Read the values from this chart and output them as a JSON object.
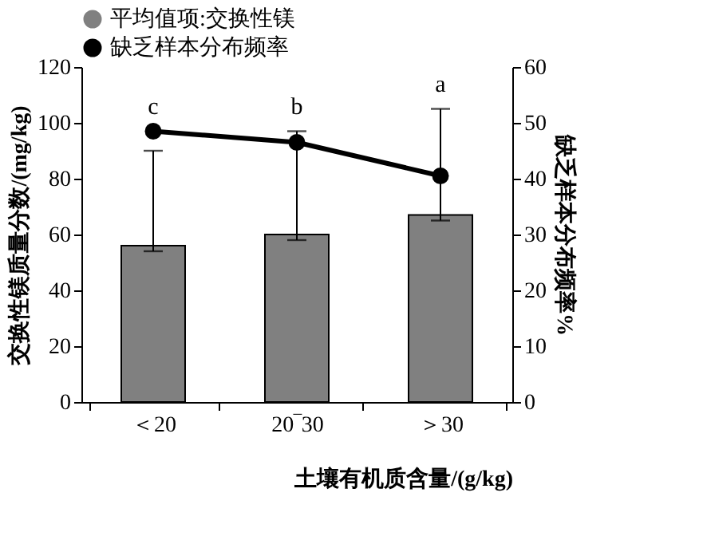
{
  "chart_data": {
    "type": "bar",
    "xlabel": "土壤有机质含量/(g/kg)",
    "ylabel": "交换性镁质量分数/(mg/kg)",
    "y2label": "缺乏样本分布频率%",
    "categories": [
      "＜20",
      "20‾30",
      "＞30"
    ],
    "series": [
      {
        "name": "平均值项:交换性镁",
        "color": "#808080",
        "values": [
          56,
          60,
          67
        ],
        "errors": [
          [
            54,
            90
          ],
          [
            58,
            97
          ],
          [
            65,
            105
          ]
        ]
      },
      {
        "name": "缺乏样本分布频率",
        "type": "line",
        "axis": "y2",
        "color": "#000000",
        "marker": "circle",
        "values": [
          48.5,
          46.5,
          40.5
        ]
      }
    ],
    "ylim": [
      0,
      120
    ],
    "yticks": [
      0,
      20,
      40,
      60,
      80,
      100,
      120
    ],
    "y2lim": [
      0,
      60
    ],
    "y2ticks": [
      0,
      10,
      20,
      30,
      40,
      50,
      60
    ],
    "annotations": [
      "c",
      "b",
      "a"
    ],
    "legend": "top",
    "grid": false
  }
}
